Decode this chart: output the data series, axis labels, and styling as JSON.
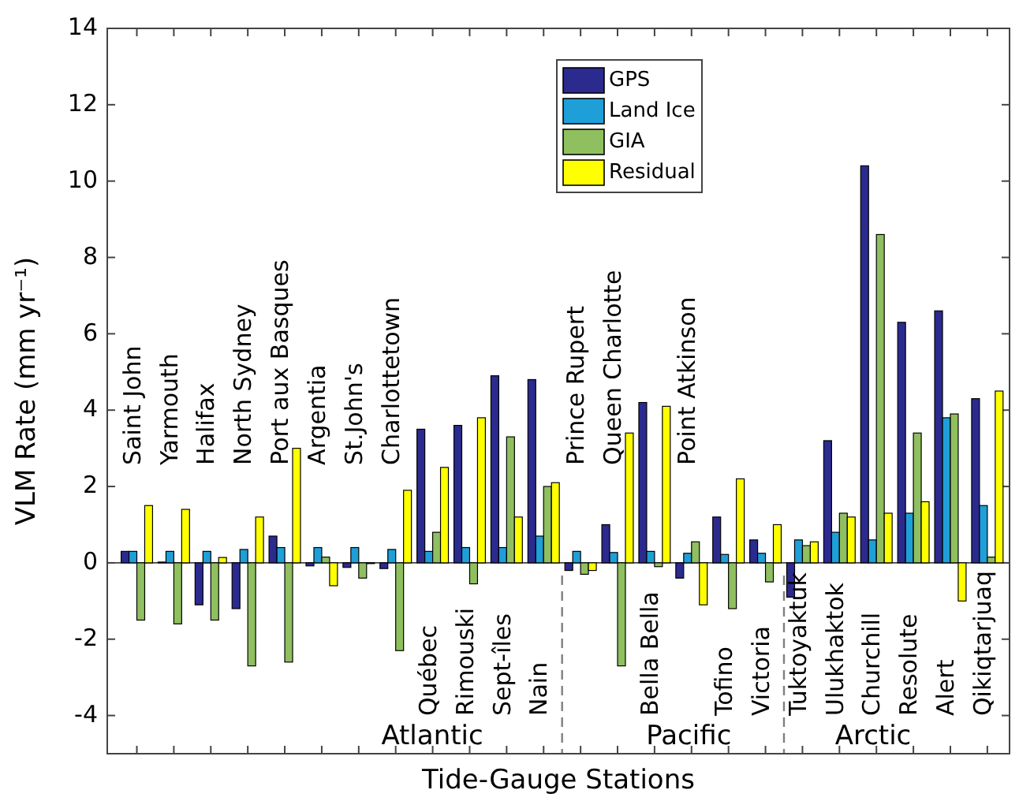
{
  "chart_data": {
    "type": "bar",
    "xlabel": "Tide-Gauge Stations",
    "ylabel": "VLM Rate (mm yr⁻¹)",
    "categories": [
      "Saint John",
      "Yarmouth",
      "Halifax",
      "North Sydney",
      "Port aux Basques",
      "Argentia",
      "St.John's",
      "Charlottetown",
      "Québec",
      "Rimouski",
      "Sept-îles",
      "Nain",
      "Prince Rupert",
      "Queen Charlotte",
      "Bella Bella",
      "Point Atkinson",
      "Tofino",
      "Victoria",
      "Tuktoyaktuk",
      "Ulukhaktok",
      "Churchill",
      "Resolute",
      "Alert",
      "Qikiqtarjuaq"
    ],
    "series": [
      {
        "name": "GPS",
        "color": "#2b2a8e",
        "values": [
          0.3,
          0.02,
          -1.1,
          -1.2,
          0.7,
          -0.08,
          -0.12,
          -0.15,
          3.5,
          3.6,
          4.9,
          4.8,
          -0.2,
          1.0,
          4.2,
          -0.4,
          1.2,
          0.6,
          -0.9,
          3.2,
          10.4,
          6.3,
          6.6,
          4.3
        ]
      },
      {
        "name": "Land Ice",
        "color": "#1e9fd8",
        "values": [
          0.3,
          0.3,
          0.3,
          0.35,
          0.4,
          0.4,
          0.4,
          0.35,
          0.3,
          0.4,
          0.4,
          0.7,
          0.3,
          0.27,
          0.3,
          0.25,
          0.22,
          0.25,
          0.6,
          0.8,
          0.6,
          1.3,
          3.8,
          1.5
        ]
      },
      {
        "name": "GIA",
        "color": "#8fbf5f",
        "values": [
          -1.5,
          -1.6,
          -1.5,
          -2.7,
          -2.6,
          0.15,
          -0.4,
          -2.3,
          0.8,
          -0.55,
          3.3,
          2.0,
          -0.3,
          -2.7,
          -0.1,
          0.55,
          -1.2,
          -0.5,
          0.45,
          1.3,
          8.6,
          3.4,
          3.9,
          0.15
        ]
      },
      {
        "name": "Residual",
        "color": "#ffff00",
        "values": [
          1.5,
          1.4,
          0.14,
          1.2,
          3.0,
          -0.6,
          -0.02,
          1.9,
          2.5,
          3.8,
          1.2,
          2.1,
          -0.2,
          3.4,
          4.1,
          -1.1,
          2.2,
          1.0,
          0.55,
          1.2,
          1.3,
          1.6,
          -1.0,
          4.5
        ]
      }
    ],
    "ylim": [
      -5,
      14
    ],
    "yticks": [
      -4,
      -2,
      0,
      2,
      4,
      6,
      8,
      10,
      12,
      14
    ],
    "annotations": [
      "Atlantic",
      "Pacific",
      "Arctic"
    ],
    "legend": "top"
  }
}
